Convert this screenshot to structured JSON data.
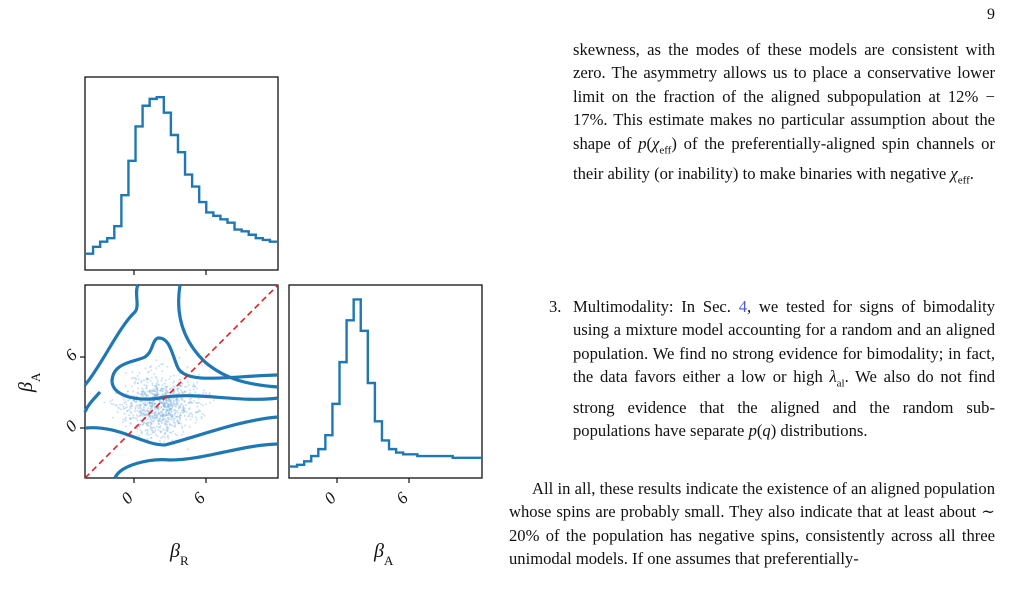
{
  "page_number": "9",
  "figure": {
    "colors": {
      "line": "#1f77b4",
      "points": "#6fa8dc",
      "diagonal": "#e02020",
      "axes": "#111111"
    },
    "xlabel_left": "β_R",
    "xlabel_right": "β_A",
    "ylabel": "β_A",
    "xticks_left": [
      "0",
      "6"
    ],
    "xticks_right": [
      "0",
      "6"
    ],
    "yticks": [
      "6",
      "0"
    ]
  },
  "chart_data": [
    {
      "type": "histogram",
      "panel": "top-left marginal of β_R",
      "x": [
        -4,
        -3.4,
        -2.8,
        -2.2,
        -1.6,
        -1.0,
        -0.4,
        0.2,
        0.8,
        1.4,
        2.0,
        2.6,
        3.2,
        3.8,
        4.4,
        5.0,
        5.6,
        6.2,
        6.8,
        7.4,
        8.0,
        8.6,
        9.2,
        9.8,
        10.4,
        11.0,
        11.6
      ],
      "values": [
        0.06,
        0.1,
        0.13,
        0.15,
        0.22,
        0.4,
        0.6,
        0.8,
        0.92,
        0.96,
        0.97,
        0.88,
        0.75,
        0.65,
        0.52,
        0.45,
        0.36,
        0.3,
        0.28,
        0.26,
        0.24,
        0.2,
        0.19,
        0.17,
        0.15,
        0.14,
        0.13
      ]
    },
    {
      "type": "histogram",
      "panel": "bottom-right marginal of β_A",
      "x": [
        -4,
        -3.4,
        -2.8,
        -2.2,
        -1.6,
        -1.0,
        -0.4,
        0.2,
        0.8,
        1.4,
        2.0,
        2.6,
        3.2,
        3.8,
        4.4,
        5.0,
        5.6,
        6.2,
        6.8,
        7.4,
        8.0,
        8.6,
        9.2,
        9.8,
        10.4,
        11.0,
        11.6
      ],
      "values": [
        0.02,
        0.03,
        0.05,
        0.08,
        0.12,
        0.2,
        0.38,
        0.62,
        0.86,
        0.98,
        0.8,
        0.5,
        0.28,
        0.17,
        0.12,
        0.1,
        0.09,
        0.09,
        0.08,
        0.08,
        0.08,
        0.08,
        0.08,
        0.07,
        0.07,
        0.07,
        0.07
      ]
    },
    {
      "type": "scatter",
      "panel": "bottom-left joint β_R vs β_A",
      "xlim": [
        -4,
        12
      ],
      "ylim": [
        -4,
        12
      ],
      "diagonal": "y = x",
      "center": [
        2.5,
        1.0
      ]
    }
  ],
  "text": {
    "p1": "skewness, as the modes of these models are consistent with zero. The asymmetry allows us to place a conservative lower limit on the fraction of the aligned subpopulation at 12% − 17%. This estimate makes no particular assumption about the shape of p(χ_eff) of the preferentially-aligned spin channels or their ability (or inability) to make binaries with negative χ_eff.",
    "item3_num": "3.",
    "item3_pre": "Multimodality: In Sec.",
    "item3_ref": "4",
    "item3_post": ", we tested for signs of bimodality using a mixture model accounting for a random and an aligned population. We find no strong evidence for bimodality; in fact, the data favors either a low or high λ_al. We also do not find strong evidence that the aligned and the random sub-populations have separate p(q) distributions.",
    "p3": "All in all, these results indicate the existence of an aligned population whose spins are probably small. They also indicate that at least about ∼ 20% of the population has negative spins, consistently across all three unimodal models. If one assumes that preferentially-"
  }
}
